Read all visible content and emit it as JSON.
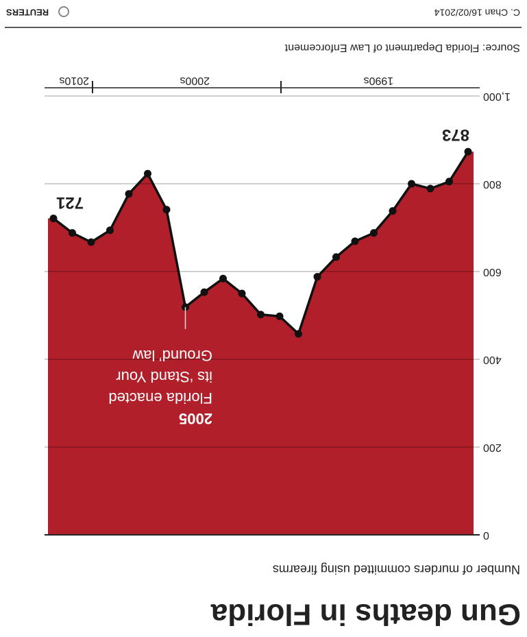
{
  "chart_data": {
    "type": "area",
    "title": "Gun deaths in Florida",
    "subtitle": "Number of murders committed using firearms",
    "source": "Source: Florida Department of Law Enforcement",
    "credit": "C. Chan 16/02/2014",
    "publisher": "REUTERS",
    "categories": [
      null,
      null,
      null,
      null,
      null,
      null,
      null,
      null,
      null,
      null,
      null,
      null,
      null,
      null,
      null,
      null,
      null,
      null,
      null,
      null,
      null,
      null,
      null
    ],
    "x_groups": [
      "1990s",
      "2000s",
      "2010s"
    ],
    "values": [
      873,
      805,
      789,
      800,
      738,
      688,
      669,
      633,
      588,
      458,
      498,
      502,
      550,
      584,
      553,
      519,
      741,
      823,
      777,
      694,
      667,
      688,
      721
    ],
    "color": "#b01f2a",
    "line_color": "#111111",
    "ylim": [
      0,
      1000
    ],
    "yticks": [
      0,
      200,
      400,
      600,
      800,
      {
        "value": 1000,
        "label": "1,000"
      }
    ],
    "y_inverted": true,
    "grid": true,
    "annotation": {
      "title": "2005",
      "lines": [
        "Florida enacted",
        "its ‘Stand Your",
        "Ground’ law"
      ]
    }
  }
}
